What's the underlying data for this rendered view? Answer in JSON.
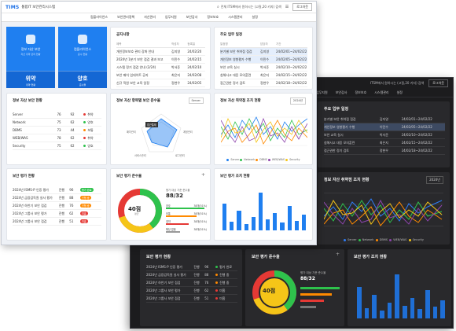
{
  "light": {
    "logo": "TIMS",
    "brand": "통합IT 보안관리시스템",
    "search": "전체  ITSM에서 원하시는 (고질,20 키지) 검색",
    "logout": "로그아웃",
    "nav": [
      "컴플라이언스",
      "보안관리정책",
      "자산관리",
      "업무지원",
      "보안감사",
      "정보보호",
      "시스템관리",
      "설정"
    ],
    "tiles": [
      {
        "name": "정보 자산 보안",
        "sub": "자산 취약 관리 현황",
        "value": "위약",
        "value_sub": "취약 현황"
      },
      {
        "name": "컴플라이언스",
        "sub": "준수 현황",
        "value": "양호",
        "value_sub": "준수율"
      }
    ],
    "notice": {
      "title": "공지사항",
      "headers": [
        "제목",
        "작성자",
        "등록일"
      ],
      "rows": [
        [
          "개인정보보호 관리 강화 안내",
          "김지영",
          "24/02/20"
        ],
        [
          "2024년 1분기 보안 점검 결과 보고",
          "이민수",
          "24/02/15"
        ],
        [
          "시스템 정기 점검 안내 (2/24)",
          "박서준",
          "24/02/10"
        ],
        [
          "보안 패치 업데이트 공지",
          "최은지",
          "24/02/08"
        ],
        [
          "신규 직원 보안 교육 일정",
          "정현우",
          "24/02/05"
        ]
      ]
    },
    "tasks": {
      "title": "주요 업무 일정",
      "headers": [
        "일정명",
        "담당자",
        "기간"
      ],
      "rows": [
        [
          "분기별 보안 취약점 점검",
          "김지영",
          "24/02/01~24/02/22"
        ],
        [
          "개인정보 영향평가 수행",
          "이민수",
          "24/02/05~24/02/22"
        ],
        [
          "보안 교육 실시",
          "박서준",
          "24/02/10~24/02/22"
        ],
        [
          "침해사고 대응 모의훈련",
          "최은지",
          "24/02/15~24/02/22"
        ],
        [
          "접근권한 정기 검토",
          "정현우",
          "24/02/18~24/02/22"
        ]
      ]
    },
    "asset_status": {
      "title": "정보 자산 보안 현황",
      "rows": [
        [
          "Server",
          "76",
          "92",
          "취약"
        ],
        [
          "Network",
          "75",
          "62",
          "양호"
        ],
        [
          "DBMS",
          "73",
          "44",
          "보통"
        ],
        [
          "WEB/WAS",
          "78",
          "62",
          "취약"
        ],
        [
          "Security",
          "75",
          "62",
          "양호"
        ]
      ]
    },
    "radar": {
      "title": "정보 자산 항목별 보안 준수율",
      "select": "Server",
      "labels": [
        "접근통제",
        "계정관리",
        "로그관리",
        "서비스관리",
        "패치관리"
      ]
    },
    "trend": {
      "title": "정보 자산 취약점 조치 현황",
      "select": "2024년",
      "legend": [
        "Server",
        "Network",
        "DBMS",
        "WEB/WAS",
        "Security"
      ]
    },
    "eval": {
      "title": "보안 평가 현황",
      "rows": [
        [
          "2024년 ISMS-P 인증 평가",
          "진행",
          "96",
          "평가 완료"
        ],
        [
          "2024년 금융감독원 실사 평가",
          "진행",
          "88",
          "진행 중"
        ],
        [
          "2024년 하반기 보안 점검",
          "진행",
          "76",
          "진행 중"
        ],
        [
          "2024년 그룹사 보안 평가",
          "진행",
          "62",
          "미흡"
        ],
        [
          "2024년 그룹사 보안 점검",
          "진행",
          "51",
          "미흡"
        ]
      ]
    },
    "compliance": {
      "title": "보안 평가 준수율",
      "score": "40점",
      "score_sub": "평균",
      "ratio_label": "평가 대상 기준 준수율",
      "ratio": "88/32",
      "items": [
        [
          "양호",
          "38개(51%)"
        ],
        [
          "보통",
          "38개(51%)"
        ],
        [
          "취약",
          "38개(51%)"
        ],
        [
          "해당 없음",
          "38개(51%)"
        ]
      ]
    },
    "action": {
      "title": "보안 평가 조치 현황"
    }
  },
  "dark": {
    "search": "ITSM에서 원하시는 (고질,20 키지) 검색",
    "logout": "로그아웃",
    "nav": [
      "업무지원",
      "보안감사",
      "정보보호",
      "시스템관리",
      "설정"
    ],
    "tasks_title": "주요 업무 일정",
    "task_rows": [
      [
        "분기별 보안 취약점 점검",
        "김지영",
        "24/02/01~24/02/22"
      ],
      [
        "개인정보 영향평가 수행",
        "이민수",
        "24/02/05~24/02/22"
      ],
      [
        "보안 교육 실시",
        "박서준",
        "24/02/10~24/02/22"
      ],
      [
        "침해사고 대응 모의훈련",
        "최은지",
        "24/02/15~24/02/22"
      ],
      [
        "접근권한 정기 검토",
        "정현우",
        "24/02/18~24/02/22"
      ]
    ],
    "trend_title": "정보 자산 취약점 조치 현황",
    "trend_select": "2024년",
    "legend": [
      "Server",
      "Network",
      "DBMS",
      "WEB/WAS",
      "Security"
    ],
    "left_select": "Server",
    "eval_title": "보안 평가 현황",
    "eval_rows": [
      [
        "2024년 ISMS-P 인증 평가",
        "진행",
        "96",
        "평가 완료"
      ],
      [
        "2024년 금융감독원 실사 평가",
        "진행",
        "88",
        "진행 중"
      ],
      [
        "2024년 하반기 보안 점검",
        "진행",
        "76",
        "진행 중"
      ],
      [
        "2024년 그룹사 보안 평가",
        "진행",
        "62",
        "미흡"
      ],
      [
        "2024년 그룹사 보안 점검",
        "진행",
        "51",
        "미흡"
      ]
    ],
    "compliance_title": "보안 평가 준수율",
    "score": "40점",
    "score_sub": "평균",
    "ratio_label": "평가 대상 기준 준수율",
    "ratio": "88/32",
    "action_title": "보안 평가 조치 현황"
  },
  "colors": {
    "blue": "#1f7ff0",
    "green": "#2ec24c",
    "yellow": "#f5c518",
    "red": "#e53935",
    "orange": "#ff8a00",
    "purple": "#8e44ad"
  }
}
